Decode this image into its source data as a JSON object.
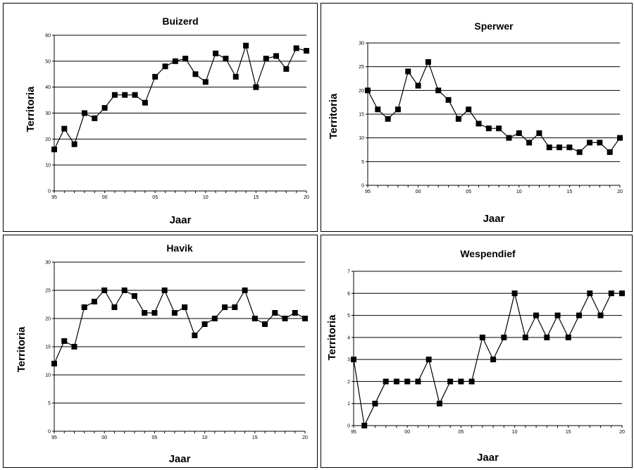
{
  "chart_data": [
    {
      "type": "line",
      "title": "Buizerd",
      "xlabel": "Jaar",
      "ylabel": "Territoria",
      "x": [
        1995,
        1996,
        1997,
        1998,
        1999,
        2000,
        2001,
        2002,
        2003,
        2004,
        2005,
        2006,
        2007,
        2008,
        2009,
        2010,
        2011,
        2012,
        2013,
        2014,
        2015,
        2016,
        2017,
        2018,
        2019,
        2020
      ],
      "values": [
        16,
        24,
        18,
        30,
        28,
        32,
        37,
        37,
        37,
        34,
        44,
        48,
        50,
        51,
        45,
        42,
        53,
        51,
        44,
        56,
        40,
        51,
        52,
        47,
        55,
        54
      ],
      "xticks": [
        "95",
        "00",
        "05",
        "10",
        "15",
        "20"
      ],
      "yticks": [
        "0",
        "10",
        "20",
        "30",
        "40",
        "50",
        "60"
      ],
      "ylim": [
        0,
        60
      ],
      "xlim": [
        1995,
        2020
      ],
      "grid": "horizontal",
      "marker": "square"
    },
    {
      "type": "line",
      "title": "Sperwer",
      "xlabel": "Jaar",
      "ylabel": "Territoria",
      "x": [
        1995,
        1996,
        1997,
        1998,
        1999,
        2000,
        2001,
        2002,
        2003,
        2004,
        2005,
        2006,
        2007,
        2008,
        2009,
        2010,
        2011,
        2012,
        2013,
        2014,
        2015,
        2016,
        2017,
        2018,
        2019,
        2020
      ],
      "values": [
        20,
        16,
        14,
        16,
        24,
        21,
        26,
        20,
        18,
        14,
        16,
        13,
        12,
        12,
        10,
        11,
        9,
        11,
        8,
        8,
        8,
        7,
        9,
        9,
        7,
        10
      ],
      "xticks": [
        "95",
        "00",
        "05",
        "10",
        "15",
        "20"
      ],
      "yticks": [
        "0",
        "5",
        "10",
        "15",
        "20",
        "25",
        "30"
      ],
      "ylim": [
        0,
        30
      ],
      "xlim": [
        1995,
        2020
      ],
      "grid": "horizontal",
      "marker": "square"
    },
    {
      "type": "line",
      "title": "Havik",
      "xlabel": "Jaar",
      "ylabel": "Territoria",
      "x": [
        1995,
        1996,
        1997,
        1998,
        1999,
        2000,
        2001,
        2002,
        2003,
        2004,
        2005,
        2006,
        2007,
        2008,
        2009,
        2010,
        2011,
        2012,
        2013,
        2014,
        2015,
        2016,
        2017,
        2018,
        2019,
        2020
      ],
      "values": [
        12,
        16,
        15,
        22,
        23,
        25,
        22,
        25,
        24,
        21,
        21,
        25,
        21,
        22,
        17,
        19,
        20,
        22,
        22,
        25,
        20,
        19,
        21,
        20,
        21,
        20
      ],
      "xticks": [
        "95",
        "00",
        "05",
        "10",
        "15",
        "20"
      ],
      "yticks": [
        "0",
        "5",
        "10",
        "15",
        "20",
        "25",
        "30"
      ],
      "ylim": [
        0,
        30
      ],
      "xlim": [
        1995,
        2020
      ],
      "grid": "horizontal",
      "marker": "square"
    },
    {
      "type": "line",
      "title": "Wespendief",
      "xlabel": "Jaar",
      "ylabel": "Territoria",
      "x": [
        1995,
        1996,
        1997,
        1998,
        1999,
        2000,
        2001,
        2002,
        2003,
        2004,
        2005,
        2006,
        2007,
        2008,
        2009,
        2010,
        2011,
        2012,
        2013,
        2014,
        2015,
        2016,
        2017,
        2018,
        2019,
        2020
      ],
      "values": [
        3,
        0,
        1,
        2,
        2,
        2,
        2,
        3,
        1,
        2,
        2,
        2,
        4,
        3,
        4,
        6,
        4,
        5,
        4,
        5,
        4,
        5,
        6,
        5,
        6,
        6
      ],
      "xticks": [
        "95",
        "00",
        "05",
        "10",
        "15",
        "20"
      ],
      "yticks": [
        "0",
        "1",
        "2",
        "3",
        "4",
        "5",
        "6",
        "7"
      ],
      "ylim": [
        0,
        7
      ],
      "xlim": [
        1995,
        2020
      ],
      "grid": "horizontal",
      "marker": "square"
    }
  ]
}
